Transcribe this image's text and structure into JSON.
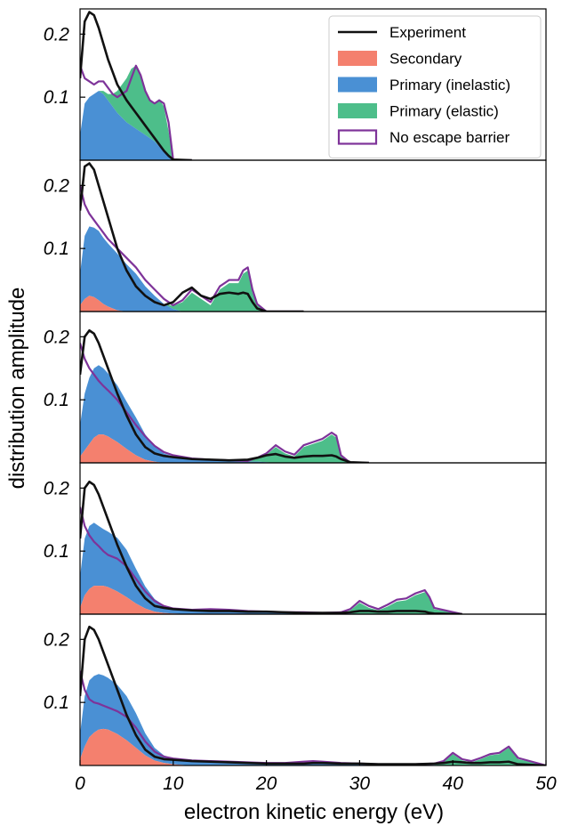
{
  "chart_data": {
    "type": "area",
    "layout": "5 vertically stacked panels sharing one x axis",
    "xlabel": "electron kinetic energy (eV)",
    "ylabel": "distribution amplitude",
    "xlim": [
      0,
      50
    ],
    "xticks": [
      0,
      10,
      20,
      30,
      40,
      50
    ],
    "ylim": [
      0,
      0.24
    ],
    "yticks": [
      0.1,
      0.2
    ],
    "ytick_labels": [
      "0.1",
      "0.2"
    ],
    "legend_placement": "top-right of first panel",
    "legend": [
      {
        "label": "Experiment",
        "style": "line",
        "color": "#111111"
      },
      {
        "label": "Secondary",
        "style": "fill",
        "color": "#F4806E"
      },
      {
        "label": "Primary (inelastic)",
        "style": "fill",
        "color": "#4A90D4"
      },
      {
        "label": "Primary (elastic)",
        "style": "fill",
        "color": "#4DBE8A"
      },
      {
        "label": "No escape barrier",
        "style": "outline",
        "color": "#7E3399"
      }
    ],
    "panels": [
      {
        "x": [
          0,
          0.5,
          1,
          1.5,
          2,
          2.5,
          3,
          3.5,
          4,
          5,
          5.5,
          6,
          6.5,
          7,
          7.5,
          8,
          8.5,
          9,
          9.5,
          10,
          12
        ],
        "secondary": [
          0,
          0,
          0,
          0,
          0,
          0,
          0,
          0,
          0,
          0,
          0,
          0,
          0,
          0,
          0,
          0,
          0,
          0,
          0,
          0,
          0
        ],
        "primary_inelastic": [
          0.04,
          0.09,
          0.1,
          0.105,
          0.11,
          0.105,
          0.095,
          0.085,
          0.075,
          0.06,
          0.055,
          0.05,
          0.045,
          0.04,
          0.035,
          0.03,
          0.022,
          0.015,
          0.006,
          0,
          0
        ],
        "primary_elastic": [
          0,
          0,
          0,
          0,
          0,
          0.005,
          0.01,
          0.02,
          0.035,
          0.07,
          0.09,
          0.1,
          0.09,
          0.07,
          0.06,
          0.06,
          0.075,
          0.07,
          0.04,
          0,
          0
        ],
        "no_escape_barrier": [
          0.15,
          0.13,
          0.125,
          0.12,
          0.125,
          0.125,
          0.115,
          0.105,
          0.1,
          0.11,
          0.13,
          0.15,
          0.135,
          0.11,
          0.095,
          0.09,
          0.095,
          0.09,
          0.06,
          0,
          0
        ],
        "experiment": [
          0.13,
          0.22,
          0.235,
          0.23,
          0.21,
          0.185,
          0.16,
          0.14,
          0.12,
          0.095,
          0.085,
          0.075,
          0.065,
          0.055,
          0.045,
          0.035,
          0.025,
          0.015,
          0.007,
          0.001,
          0
        ]
      },
      {
        "x": [
          0,
          0.5,
          1,
          1.5,
          2,
          2.5,
          3,
          4,
          5,
          6,
          7,
          8,
          9,
          10,
          11,
          12,
          13,
          14,
          15,
          16,
          17,
          17.5,
          18,
          18.5,
          19,
          20,
          24
        ],
        "secondary": [
          0.01,
          0.02,
          0.025,
          0.023,
          0.018,
          0.012,
          0.008,
          0.002,
          0,
          0,
          0,
          0,
          0,
          0,
          0,
          0,
          0,
          0,
          0,
          0,
          0,
          0,
          0,
          0,
          0,
          0,
          0
        ],
        "primary_inelastic": [
          0.05,
          0.1,
          0.11,
          0.11,
          0.11,
          0.105,
          0.1,
          0.09,
          0.075,
          0.06,
          0.04,
          0.025,
          0.012,
          0.004,
          0,
          0,
          0,
          0,
          0,
          0,
          0,
          0,
          0,
          0,
          0,
          0,
          0
        ],
        "primary_elastic": [
          0,
          0,
          0,
          0,
          0,
          0,
          0,
          0,
          0,
          0,
          0,
          0,
          0,
          0.005,
          0.015,
          0.03,
          0.02,
          0.01,
          0.035,
          0.045,
          0.045,
          0.06,
          0.065,
          0.03,
          0.01,
          0,
          0
        ],
        "no_escape_barrier": [
          0.2,
          0.17,
          0.155,
          0.145,
          0.135,
          0.125,
          0.115,
          0.1,
          0.085,
          0.07,
          0.05,
          0.035,
          0.02,
          0.01,
          0.018,
          0.035,
          0.025,
          0.015,
          0.04,
          0.05,
          0.05,
          0.065,
          0.07,
          0.035,
          0.012,
          0,
          0
        ],
        "experiment": [
          0.16,
          0.23,
          0.235,
          0.225,
          0.2,
          0.175,
          0.15,
          0.1,
          0.065,
          0.04,
          0.025,
          0.015,
          0.01,
          0.015,
          0.03,
          0.038,
          0.025,
          0.02,
          0.028,
          0.03,
          0.028,
          0.03,
          0.028,
          0.015,
          0.005,
          0,
          0
        ]
      },
      {
        "x": [
          0,
          0.5,
          1,
          1.5,
          2,
          2.5,
          3,
          4,
          5,
          6,
          7,
          8,
          9,
          10,
          12,
          14,
          16,
          18,
          19,
          20,
          21,
          22,
          23,
          24,
          25,
          26,
          27,
          27.5,
          28,
          29,
          31
        ],
        "secondary": [
          0.01,
          0.02,
          0.03,
          0.04,
          0.045,
          0.045,
          0.042,
          0.033,
          0.022,
          0.012,
          0.005,
          0.002,
          0,
          0,
          0,
          0,
          0,
          0,
          0,
          0,
          0,
          0,
          0,
          0,
          0,
          0,
          0,
          0,
          0,
          0,
          0
        ],
        "primary_inelastic": [
          0.05,
          0.09,
          0.105,
          0.11,
          0.11,
          0.105,
          0.1,
          0.09,
          0.075,
          0.06,
          0.04,
          0.025,
          0.015,
          0.01,
          0.006,
          0.004,
          0.003,
          0.002,
          0.002,
          0.001,
          0,
          0,
          0,
          0,
          0,
          0,
          0,
          0,
          0,
          0,
          0
        ],
        "primary_elastic": [
          0,
          0,
          0,
          0,
          0,
          0,
          0,
          0,
          0,
          0,
          0,
          0,
          0,
          0,
          0,
          0,
          0,
          0,
          0.005,
          0.012,
          0.025,
          0.015,
          0.01,
          0.025,
          0.03,
          0.035,
          0.045,
          0.04,
          0.01,
          0,
          0
        ],
        "no_escape_barrier": [
          0.19,
          0.165,
          0.15,
          0.14,
          0.13,
          0.122,
          0.115,
          0.1,
          0.08,
          0.06,
          0.042,
          0.027,
          0.017,
          0.012,
          0.007,
          0.005,
          0.004,
          0.003,
          0.008,
          0.015,
          0.028,
          0.018,
          0.013,
          0.028,
          0.033,
          0.038,
          0.048,
          0.043,
          0.012,
          0,
          0
        ],
        "experiment": [
          0.14,
          0.2,
          0.21,
          0.205,
          0.19,
          0.17,
          0.15,
          0.11,
          0.075,
          0.045,
          0.025,
          0.015,
          0.011,
          0.009,
          0.006,
          0.005,
          0.004,
          0.005,
          0.008,
          0.012,
          0.014,
          0.01,
          0.008,
          0.01,
          0.011,
          0.011,
          0.012,
          0.01,
          0.006,
          0.001,
          0
        ]
      },
      {
        "x": [
          0,
          0.5,
          1,
          1.5,
          2,
          2.5,
          3,
          4,
          5,
          6,
          7,
          8,
          9,
          10,
          12,
          14,
          16,
          18,
          20,
          22,
          24,
          26,
          28,
          29,
          30,
          31,
          32,
          33,
          34,
          35,
          36,
          37,
          37.5,
          38,
          41
        ],
        "secondary": [
          0.01,
          0.03,
          0.04,
          0.045,
          0.045,
          0.045,
          0.043,
          0.036,
          0.027,
          0.017,
          0.009,
          0.004,
          0.002,
          0.001,
          0,
          0,
          0,
          0,
          0,
          0,
          0,
          0,
          0,
          0,
          0,
          0,
          0,
          0,
          0,
          0,
          0,
          0,
          0,
          0,
          0
        ],
        "primary_inelastic": [
          0.05,
          0.09,
          0.1,
          0.1,
          0.095,
          0.09,
          0.088,
          0.085,
          0.075,
          0.055,
          0.035,
          0.02,
          0.012,
          0.008,
          0.006,
          0.007,
          0.006,
          0.004,
          0.003,
          0.002,
          0.002,
          0.001,
          0.001,
          0.001,
          0,
          0,
          0,
          0,
          0,
          0,
          0,
          0,
          0,
          0,
          0
        ],
        "primary_elastic": [
          0,
          0,
          0,
          0,
          0,
          0,
          0,
          0,
          0,
          0,
          0,
          0,
          0,
          0,
          0,
          0,
          0,
          0,
          0,
          0,
          0,
          0,
          0,
          0.005,
          0.018,
          0.01,
          0.006,
          0.012,
          0.02,
          0.022,
          0.03,
          0.035,
          0.025,
          0.008,
          0
        ],
        "no_escape_barrier": [
          0.17,
          0.14,
          0.125,
          0.115,
          0.108,
          0.1,
          0.094,
          0.088,
          0.076,
          0.056,
          0.036,
          0.021,
          0.013,
          0.009,
          0.007,
          0.008,
          0.007,
          0.005,
          0.004,
          0.003,
          0.003,
          0.002,
          0.003,
          0.008,
          0.021,
          0.013,
          0.008,
          0.015,
          0.023,
          0.025,
          0.033,
          0.038,
          0.027,
          0.01,
          0
        ],
        "experiment": [
          0.12,
          0.2,
          0.21,
          0.205,
          0.19,
          0.17,
          0.15,
          0.11,
          0.075,
          0.045,
          0.025,
          0.013,
          0.01,
          0.008,
          0.006,
          0.005,
          0.005,
          0.004,
          0.004,
          0.003,
          0.002,
          0.002,
          0.002,
          0.003,
          0.005,
          0.005,
          0.004,
          0.004,
          0.005,
          0.005,
          0.005,
          0.004,
          0.002,
          0.001,
          0
        ]
      },
      {
        "x": [
          0,
          0.5,
          1,
          1.5,
          2,
          2.5,
          3,
          4,
          5,
          6,
          7,
          8,
          9,
          10,
          12,
          14,
          16,
          18,
          20,
          22,
          24,
          25,
          26,
          28,
          30,
          32,
          34,
          36,
          38,
          39,
          40,
          41,
          42,
          43,
          44,
          45,
          46,
          47,
          50
        ],
        "secondary": [
          0.01,
          0.03,
          0.045,
          0.052,
          0.057,
          0.058,
          0.057,
          0.05,
          0.04,
          0.028,
          0.016,
          0.008,
          0.004,
          0.002,
          0,
          0,
          0,
          0,
          0,
          0,
          0,
          0,
          0,
          0,
          0,
          0,
          0,
          0,
          0,
          0,
          0,
          0,
          0,
          0,
          0,
          0,
          0,
          0,
          0
        ],
        "primary_inelastic": [
          0.04,
          0.08,
          0.09,
          0.09,
          0.088,
          0.085,
          0.082,
          0.078,
          0.07,
          0.055,
          0.035,
          0.02,
          0.012,
          0.009,
          0.007,
          0.006,
          0.005,
          0.004,
          0.003,
          0.003,
          0.004,
          0.005,
          0.004,
          0.003,
          0.002,
          0.002,
          0.001,
          0.001,
          0.001,
          0,
          0,
          0,
          0,
          0,
          0,
          0,
          0,
          0,
          0
        ],
        "primary_elastic": [
          0,
          0,
          0,
          0,
          0,
          0,
          0,
          0,
          0,
          0,
          0,
          0,
          0,
          0,
          0,
          0,
          0,
          0,
          0,
          0,
          0,
          0,
          0,
          0,
          0,
          0,
          0,
          0,
          0,
          0.005,
          0.018,
          0.008,
          0.005,
          0.01,
          0.016,
          0.018,
          0.028,
          0.01,
          0
        ],
        "no_escape_barrier": [
          0.15,
          0.12,
          0.105,
          0.1,
          0.098,
          0.095,
          0.092,
          0.086,
          0.077,
          0.06,
          0.038,
          0.022,
          0.014,
          0.011,
          0.008,
          0.007,
          0.006,
          0.005,
          0.004,
          0.004,
          0.006,
          0.007,
          0.006,
          0.004,
          0.003,
          0.002,
          0.002,
          0.002,
          0.003,
          0.007,
          0.02,
          0.01,
          0.007,
          0.012,
          0.018,
          0.02,
          0.03,
          0.012,
          0
        ],
        "experiment": [
          0.11,
          0.2,
          0.22,
          0.215,
          0.2,
          0.18,
          0.16,
          0.12,
          0.08,
          0.048,
          0.025,
          0.014,
          0.01,
          0.009,
          0.007,
          0.006,
          0.005,
          0.004,
          0.003,
          0.003,
          0.003,
          0.004,
          0.004,
          0.003,
          0.003,
          0.002,
          0.002,
          0.002,
          0.003,
          0.004,
          0.006,
          0.005,
          0.004,
          0.004,
          0.005,
          0.005,
          0.006,
          0.002,
          0
        ]
      }
    ]
  }
}
